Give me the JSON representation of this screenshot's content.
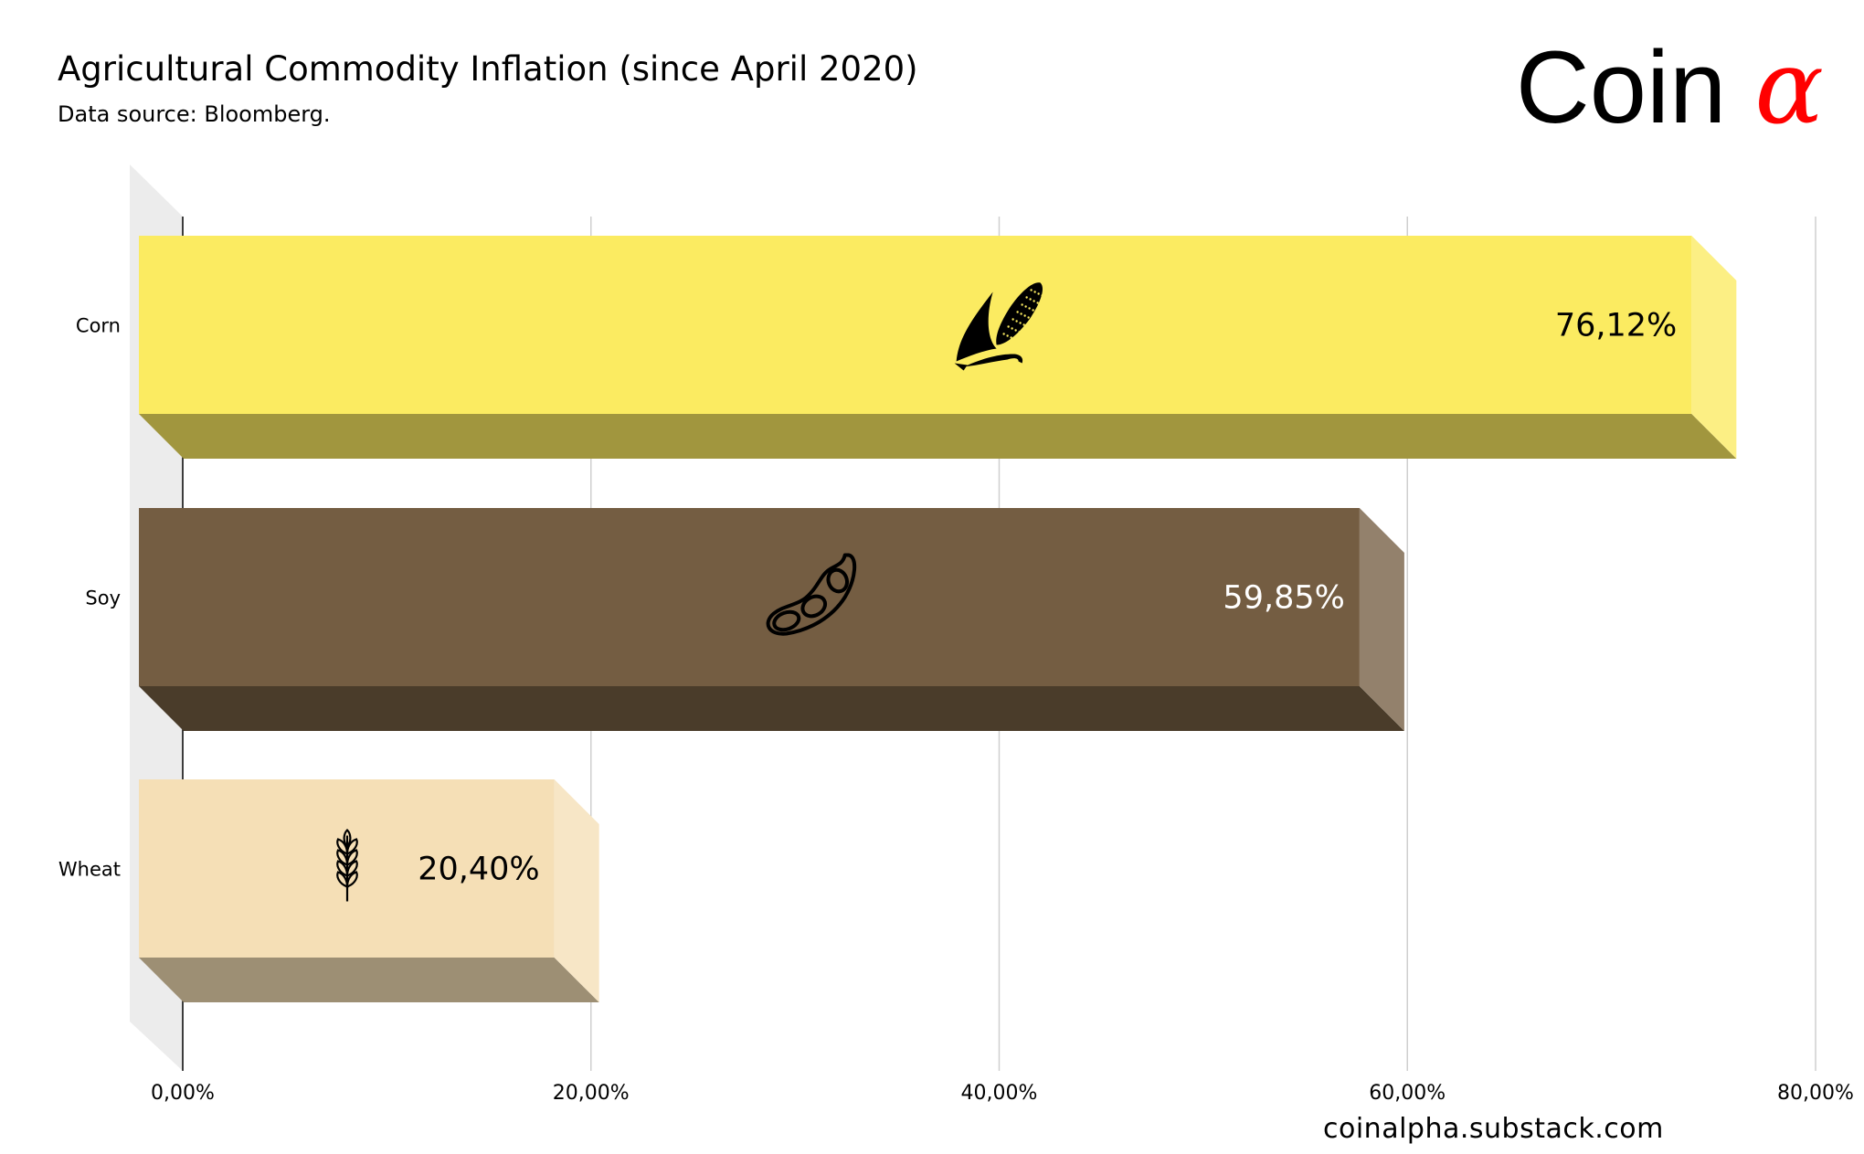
{
  "header": {
    "title": "Agricultural Commodity Inflation (since April 2020)",
    "subtitle": "Data source: Bloomberg."
  },
  "logo": {
    "text": "Coin",
    "symbol": "α",
    "symbol_color": "#ff0000"
  },
  "footer": {
    "url": "coinalpha.substack.com"
  },
  "chart_data": {
    "type": "bar",
    "orientation": "horizontal",
    "title": "Agricultural Commodity Inflation (since April 2020)",
    "subtitle": "Data source: Bloomberg.",
    "categories": [
      "Corn",
      "Soy",
      "Wheat"
    ],
    "values": [
      76.12,
      59.85,
      20.4
    ],
    "data_labels": [
      "76,12%",
      "59,85%",
      "20,40%"
    ],
    "icons": [
      "corn-icon",
      "soybean-icon",
      "wheat-icon"
    ],
    "colors": {
      "Corn": "#fbeb61",
      "Soy": "#745d42",
      "Wheat": "#f5dfb6"
    },
    "label_colors": {
      "Corn": "#000000",
      "Soy": "#ffffff",
      "Wheat": "#000000"
    },
    "xlim": [
      0,
      80
    ],
    "xticks": [
      0,
      20,
      40,
      60,
      80
    ],
    "xtick_labels": [
      "0,00%",
      "20,00%",
      "40,00%",
      "60,00%",
      "80,00%"
    ],
    "grid": true,
    "style": "3d"
  }
}
